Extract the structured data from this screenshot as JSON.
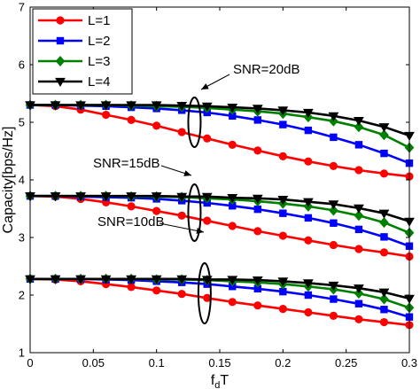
{
  "chart_data": {
    "type": "line",
    "xlabel": "f",
    "xlabel_sub": "d",
    "xlabel_suffix": "T",
    "ylabel": "Capacity[bps/Hz]",
    "xlim": [
      0,
      0.3
    ],
    "ylim": [
      1,
      7
    ],
    "xticks": [
      0,
      0.05,
      0.1,
      0.15,
      0.2,
      0.25,
      0.3
    ],
    "xtick_labels": [
      "0",
      "0.05",
      "0.1",
      "0.15",
      "0.2",
      "0.25",
      "0.3"
    ],
    "yticks": [
      1,
      2,
      3,
      4,
      5,
      6,
      7
    ],
    "ytick_labels": [
      "1",
      "2",
      "3",
      "4",
      "5",
      "6",
      "7"
    ],
    "grid": false,
    "legend_position": "top-left",
    "x": [
      0,
      0.02,
      0.04,
      0.06,
      0.08,
      0.1,
      0.12,
      0.14,
      0.16,
      0.18,
      0.2,
      0.22,
      0.24,
      0.26,
      0.28,
      0.3
    ],
    "groups": [
      {
        "label": "SNR=20dB",
        "series": [
          {
            "name": "L=1",
            "values": [
              5.3,
              5.28,
              5.22,
              5.13,
              5.04,
              4.94,
              4.83,
              4.72,
              4.61,
              4.51,
              4.41,
              4.32,
              4.24,
              4.17,
              4.11,
              4.06
            ]
          },
          {
            "name": "L=2",
            "values": [
              5.3,
              5.3,
              5.29,
              5.28,
              5.26,
              5.24,
              5.21,
              5.17,
              5.11,
              5.04,
              4.96,
              4.86,
              4.74,
              4.61,
              4.46,
              4.29
            ]
          },
          {
            "name": "L=3",
            "values": [
              5.3,
              5.3,
              5.3,
              5.3,
              5.29,
              5.28,
              5.27,
              5.25,
              5.22,
              5.19,
              5.15,
              5.09,
              5.02,
              4.92,
              4.78,
              4.56
            ]
          },
          {
            "name": "L=4",
            "values": [
              5.3,
              5.3,
              5.3,
              5.3,
              5.3,
              5.3,
              5.29,
              5.28,
              5.26,
              5.24,
              5.21,
              5.17,
              5.11,
              5.03,
              4.92,
              4.77
            ]
          }
        ]
      },
      {
        "label": "SNR=15dB",
        "series": [
          {
            "name": "L=1",
            "values": [
              3.72,
              3.71,
              3.67,
              3.61,
              3.54,
              3.46,
              3.38,
              3.29,
              3.2,
              3.11,
              3.03,
              2.95,
              2.87,
              2.8,
              2.74,
              2.67
            ]
          },
          {
            "name": "L=2",
            "values": [
              3.72,
              3.72,
              3.71,
              3.7,
              3.69,
              3.67,
              3.64,
              3.6,
              3.55,
              3.49,
              3.42,
              3.34,
              3.25,
              3.14,
              3.01,
              2.85
            ]
          },
          {
            "name": "L=3",
            "values": [
              3.72,
              3.72,
              3.72,
              3.72,
              3.71,
              3.71,
              3.7,
              3.68,
              3.66,
              3.63,
              3.59,
              3.54,
              3.47,
              3.38,
              3.26,
              3.08
            ]
          },
          {
            "name": "L=4",
            "values": [
              3.72,
              3.72,
              3.72,
              3.72,
              3.72,
              3.72,
              3.71,
              3.71,
              3.69,
              3.68,
              3.66,
              3.62,
              3.58,
              3.51,
              3.42,
              3.28
            ]
          }
        ]
      },
      {
        "label": "SNR=10dB",
        "series": [
          {
            "name": "L=1",
            "values": [
              2.28,
              2.27,
              2.24,
              2.19,
              2.14,
              2.08,
              2.02,
              1.95,
              1.88,
              1.82,
              1.76,
              1.7,
              1.64,
              1.58,
              1.53,
              1.48
            ]
          },
          {
            "name": "L=2",
            "values": [
              2.28,
              2.28,
              2.28,
              2.27,
              2.26,
              2.24,
              2.22,
              2.19,
              2.15,
              2.11,
              2.06,
              2.0,
              1.93,
              1.85,
              1.75,
              1.62
            ]
          },
          {
            "name": "L=3",
            "values": [
              2.28,
              2.28,
              2.28,
              2.28,
              2.28,
              2.27,
              2.27,
              2.26,
              2.24,
              2.22,
              2.19,
              2.15,
              2.1,
              2.03,
              1.93,
              1.78
            ]
          },
          {
            "name": "L=4",
            "values": [
              2.28,
              2.28,
              2.28,
              2.28,
              2.28,
              2.28,
              2.28,
              2.27,
              2.27,
              2.26,
              2.24,
              2.21,
              2.17,
              2.12,
              2.05,
              1.94
            ]
          }
        ]
      }
    ],
    "series_styles": [
      {
        "name": "L=1",
        "color": "#ff0000",
        "marker": "circle"
      },
      {
        "name": "L=2",
        "color": "#0000ff",
        "marker": "square"
      },
      {
        "name": "L=3",
        "color": "#008000",
        "marker": "diamond"
      },
      {
        "name": "L=4",
        "color": "#000000",
        "marker": "triangle-down"
      }
    ],
    "annotations": [
      {
        "text": "SNR=20dB",
        "group": 0,
        "ellipse_x": 0.13,
        "ellipse_y": 5.0
      },
      {
        "text": "SNR=15dB",
        "group": 1,
        "ellipse_x": 0.13,
        "ellipse_y": 3.43
      },
      {
        "text": "SNR=10dB",
        "group": 2,
        "ellipse_x": 0.138,
        "ellipse_y": 2.03
      }
    ]
  }
}
